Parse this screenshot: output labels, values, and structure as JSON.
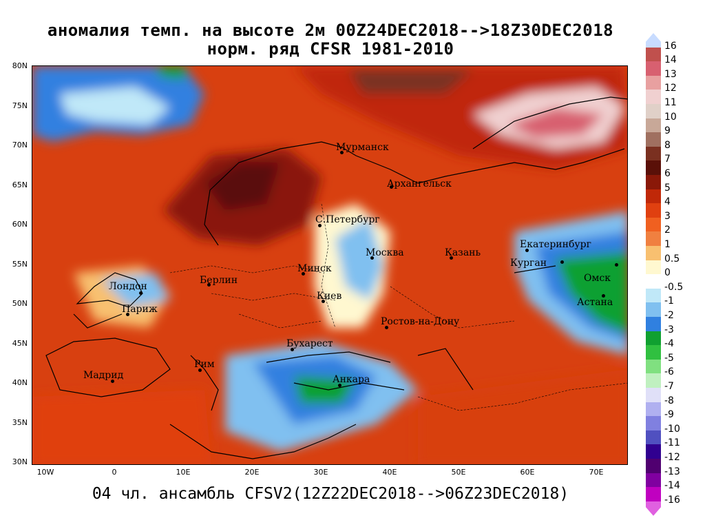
{
  "title": {
    "line1": "аномалия темп. на высоте 2м 00Z24DEC2018-->18Z30DEC2018",
    "line2": "норм. ряд CFSR 1981-2010"
  },
  "footer": "04 чл. ансамбль CFSV2(12Z22DEC2018-->06Z23DEC2018)",
  "latitude_labels": [
    "80N",
    "75N",
    "70N",
    "65N",
    "60N",
    "55N",
    "50N",
    "45N",
    "40N",
    "35N",
    "30N"
  ],
  "longitude_labels": [
    "10W",
    "0",
    "10E",
    "20E",
    "30E",
    "40E",
    "50E",
    "60E",
    "70E"
  ],
  "cities": [
    {
      "name": "Мурманск"
    },
    {
      "name": "Архангельск"
    },
    {
      "name": "С.Петербург"
    },
    {
      "name": "Москва"
    },
    {
      "name": "Казань"
    },
    {
      "name": "Екатеринбург"
    },
    {
      "name": "Курган"
    },
    {
      "name": "Омск"
    },
    {
      "name": "Астана"
    },
    {
      "name": "Минск"
    },
    {
      "name": "Берлин"
    },
    {
      "name": "Лондон"
    },
    {
      "name": "Париж"
    },
    {
      "name": "Киев"
    },
    {
      "name": "Ростов-на-Дону"
    },
    {
      "name": "Бухарест"
    },
    {
      "name": "Рим"
    },
    {
      "name": "Мадрид"
    },
    {
      "name": "Анкара"
    }
  ],
  "colorbar": {
    "labels": [
      "16",
      "14",
      "13",
      "12",
      "11",
      "10",
      "9",
      "8",
      "7",
      "6",
      "5",
      "4",
      "3",
      "2",
      "1",
      "0.5",
      "0",
      "-0.5",
      "-1",
      "-2",
      "-3",
      "-4",
      "-5",
      "-6",
      "-7",
      "-8",
      "-9",
      "-10",
      "-11",
      "-12",
      "-13",
      "-14",
      "-16"
    ],
    "colors": [
      "#c8dcff",
      "#c0504d",
      "#d86070",
      "#e8a0a0",
      "#f0d0d0",
      "#e0d0c8",
      "#c8a898",
      "#a07060",
      "#7a3020",
      "#5a1008",
      "#8a1808",
      "#c02808",
      "#e04010",
      "#f06020",
      "#f08040",
      "#f8c070",
      "#fff8d0",
      "#ffffff",
      "#c0e8f8",
      "#80c0f0",
      "#3080e0",
      "#10a030",
      "#30c040",
      "#80e080",
      "#c0f0c0",
      "#e0e0f8",
      "#b0b0f0",
      "#8080e0",
      "#5050c0",
      "#300090",
      "#500070",
      "#8000a0",
      "#c000c0",
      "#e060e0"
    ]
  },
  "colors": {
    "warm_strong": "#8a1808",
    "warm": "#d84010",
    "warm_light": "#f08040",
    "cold": "#3080e0",
    "cold_strong": "#10a030"
  }
}
